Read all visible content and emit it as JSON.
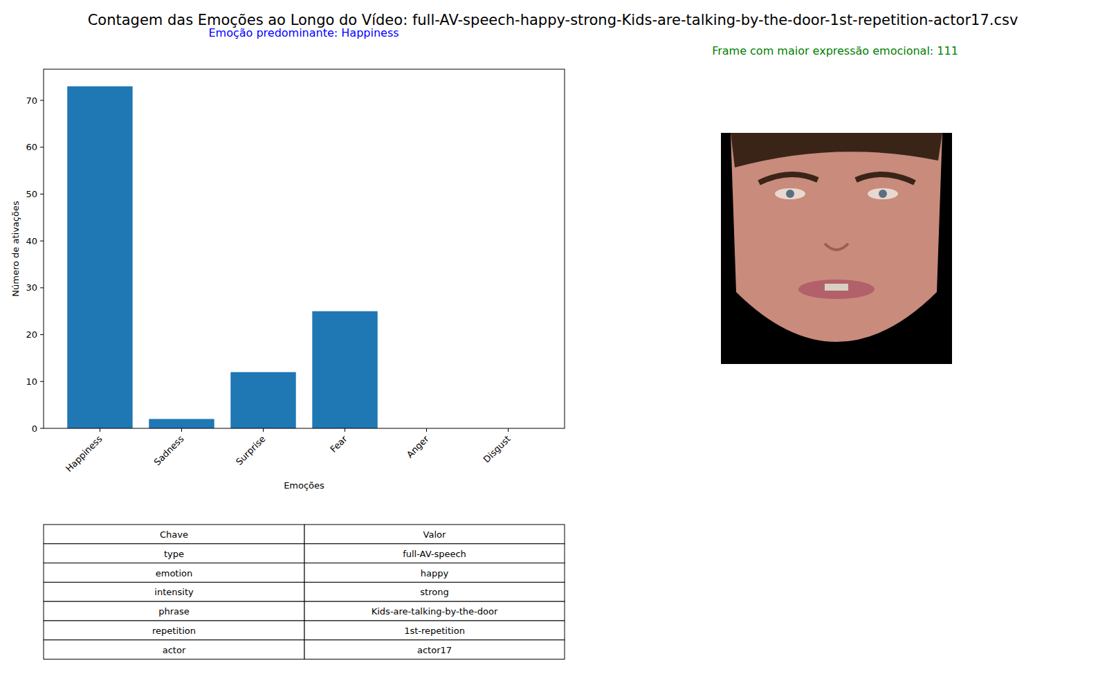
{
  "chart_data": {
    "type": "bar",
    "title": "Contagem das Emoções ao Longo do Vídeo: full-AV-speech-happy-strong-Kids-are-talking-by-the-door-1st-repetition-actor17.csv",
    "annotations": [
      "Emoção predominante: Happiness",
      "Frame com maior expressão emocional: 111"
    ],
    "x_label": "Emoções",
    "y_label": "Número de ativações",
    "categories": [
      "Happiness",
      "Sadness",
      "Surprise",
      "Fear",
      "Anger",
      "Disgust"
    ],
    "values": [
      73,
      2,
      12,
      25,
      0,
      0
    ],
    "color": "#1f77b4",
    "ylim": [
      0,
      76.65
    ],
    "yticks": [
      0,
      10,
      20,
      30,
      40,
      50,
      60,
      70
    ],
    "grid": false
  },
  "table": {
    "header": [
      "Chave",
      "Valor"
    ],
    "rows": [
      [
        "type",
        "full-AV-speech"
      ],
      [
        "emotion",
        "happy"
      ],
      [
        "intensity",
        "strong"
      ],
      [
        "phrase",
        "Kids-are-talking-by-the-door"
      ],
      [
        "repetition",
        "1st-repetition"
      ],
      [
        "actor",
        "actor17"
      ]
    ]
  }
}
